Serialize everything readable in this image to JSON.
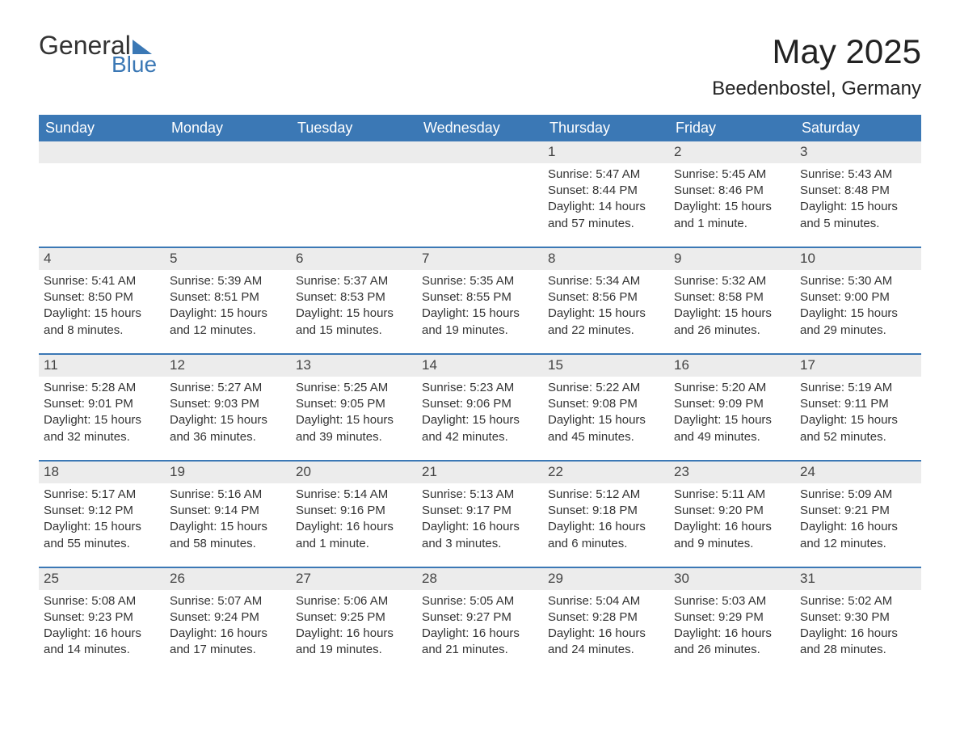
{
  "brand": {
    "line1": "General",
    "line2": "Blue"
  },
  "title": {
    "month": "May 2025",
    "location": "Beedenbostel, Germany"
  },
  "colors": {
    "header_bg": "#3b78b5",
    "header_text": "#ffffff",
    "band_bg": "#ececec",
    "band_border": "#3b78b5",
    "body_text": "#333333",
    "page_bg": "#ffffff"
  },
  "typography": {
    "month_fontsize": 42,
    "location_fontsize": 24,
    "header_fontsize": 18,
    "daynum_fontsize": 17,
    "cell_fontsize": 15
  },
  "layout": {
    "columns": 7,
    "rows": 5,
    "start_column_index": 4
  },
  "weekdays": [
    "Sunday",
    "Monday",
    "Tuesday",
    "Wednesday",
    "Thursday",
    "Friday",
    "Saturday"
  ],
  "weeks": [
    [
      null,
      null,
      null,
      null,
      {
        "d": "1",
        "sr": "Sunrise: 5:47 AM",
        "ss": "Sunset: 8:44 PM",
        "dl": "Daylight: 14 hours and 57 minutes."
      },
      {
        "d": "2",
        "sr": "Sunrise: 5:45 AM",
        "ss": "Sunset: 8:46 PM",
        "dl": "Daylight: 15 hours and 1 minute."
      },
      {
        "d": "3",
        "sr": "Sunrise: 5:43 AM",
        "ss": "Sunset: 8:48 PM",
        "dl": "Daylight: 15 hours and 5 minutes."
      }
    ],
    [
      {
        "d": "4",
        "sr": "Sunrise: 5:41 AM",
        "ss": "Sunset: 8:50 PM",
        "dl": "Daylight: 15 hours and 8 minutes."
      },
      {
        "d": "5",
        "sr": "Sunrise: 5:39 AM",
        "ss": "Sunset: 8:51 PM",
        "dl": "Daylight: 15 hours and 12 minutes."
      },
      {
        "d": "6",
        "sr": "Sunrise: 5:37 AM",
        "ss": "Sunset: 8:53 PM",
        "dl": "Daylight: 15 hours and 15 minutes."
      },
      {
        "d": "7",
        "sr": "Sunrise: 5:35 AM",
        "ss": "Sunset: 8:55 PM",
        "dl": "Daylight: 15 hours and 19 minutes."
      },
      {
        "d": "8",
        "sr": "Sunrise: 5:34 AM",
        "ss": "Sunset: 8:56 PM",
        "dl": "Daylight: 15 hours and 22 minutes."
      },
      {
        "d": "9",
        "sr": "Sunrise: 5:32 AM",
        "ss": "Sunset: 8:58 PM",
        "dl": "Daylight: 15 hours and 26 minutes."
      },
      {
        "d": "10",
        "sr": "Sunrise: 5:30 AM",
        "ss": "Sunset: 9:00 PM",
        "dl": "Daylight: 15 hours and 29 minutes."
      }
    ],
    [
      {
        "d": "11",
        "sr": "Sunrise: 5:28 AM",
        "ss": "Sunset: 9:01 PM",
        "dl": "Daylight: 15 hours and 32 minutes."
      },
      {
        "d": "12",
        "sr": "Sunrise: 5:27 AM",
        "ss": "Sunset: 9:03 PM",
        "dl": "Daylight: 15 hours and 36 minutes."
      },
      {
        "d": "13",
        "sr": "Sunrise: 5:25 AM",
        "ss": "Sunset: 9:05 PM",
        "dl": "Daylight: 15 hours and 39 minutes."
      },
      {
        "d": "14",
        "sr": "Sunrise: 5:23 AM",
        "ss": "Sunset: 9:06 PM",
        "dl": "Daylight: 15 hours and 42 minutes."
      },
      {
        "d": "15",
        "sr": "Sunrise: 5:22 AM",
        "ss": "Sunset: 9:08 PM",
        "dl": "Daylight: 15 hours and 45 minutes."
      },
      {
        "d": "16",
        "sr": "Sunrise: 5:20 AM",
        "ss": "Sunset: 9:09 PM",
        "dl": "Daylight: 15 hours and 49 minutes."
      },
      {
        "d": "17",
        "sr": "Sunrise: 5:19 AM",
        "ss": "Sunset: 9:11 PM",
        "dl": "Daylight: 15 hours and 52 minutes."
      }
    ],
    [
      {
        "d": "18",
        "sr": "Sunrise: 5:17 AM",
        "ss": "Sunset: 9:12 PM",
        "dl": "Daylight: 15 hours and 55 minutes."
      },
      {
        "d": "19",
        "sr": "Sunrise: 5:16 AM",
        "ss": "Sunset: 9:14 PM",
        "dl": "Daylight: 15 hours and 58 minutes."
      },
      {
        "d": "20",
        "sr": "Sunrise: 5:14 AM",
        "ss": "Sunset: 9:16 PM",
        "dl": "Daylight: 16 hours and 1 minute."
      },
      {
        "d": "21",
        "sr": "Sunrise: 5:13 AM",
        "ss": "Sunset: 9:17 PM",
        "dl": "Daylight: 16 hours and 3 minutes."
      },
      {
        "d": "22",
        "sr": "Sunrise: 5:12 AM",
        "ss": "Sunset: 9:18 PM",
        "dl": "Daylight: 16 hours and 6 minutes."
      },
      {
        "d": "23",
        "sr": "Sunrise: 5:11 AM",
        "ss": "Sunset: 9:20 PM",
        "dl": "Daylight: 16 hours and 9 minutes."
      },
      {
        "d": "24",
        "sr": "Sunrise: 5:09 AM",
        "ss": "Sunset: 9:21 PM",
        "dl": "Daylight: 16 hours and 12 minutes."
      }
    ],
    [
      {
        "d": "25",
        "sr": "Sunrise: 5:08 AM",
        "ss": "Sunset: 9:23 PM",
        "dl": "Daylight: 16 hours and 14 minutes."
      },
      {
        "d": "26",
        "sr": "Sunrise: 5:07 AM",
        "ss": "Sunset: 9:24 PM",
        "dl": "Daylight: 16 hours and 17 minutes."
      },
      {
        "d": "27",
        "sr": "Sunrise: 5:06 AM",
        "ss": "Sunset: 9:25 PM",
        "dl": "Daylight: 16 hours and 19 minutes."
      },
      {
        "d": "28",
        "sr": "Sunrise: 5:05 AM",
        "ss": "Sunset: 9:27 PM",
        "dl": "Daylight: 16 hours and 21 minutes."
      },
      {
        "d": "29",
        "sr": "Sunrise: 5:04 AM",
        "ss": "Sunset: 9:28 PM",
        "dl": "Daylight: 16 hours and 24 minutes."
      },
      {
        "d": "30",
        "sr": "Sunrise: 5:03 AM",
        "ss": "Sunset: 9:29 PM",
        "dl": "Daylight: 16 hours and 26 minutes."
      },
      {
        "d": "31",
        "sr": "Sunrise: 5:02 AM",
        "ss": "Sunset: 9:30 PM",
        "dl": "Daylight: 16 hours and 28 minutes."
      }
    ]
  ]
}
